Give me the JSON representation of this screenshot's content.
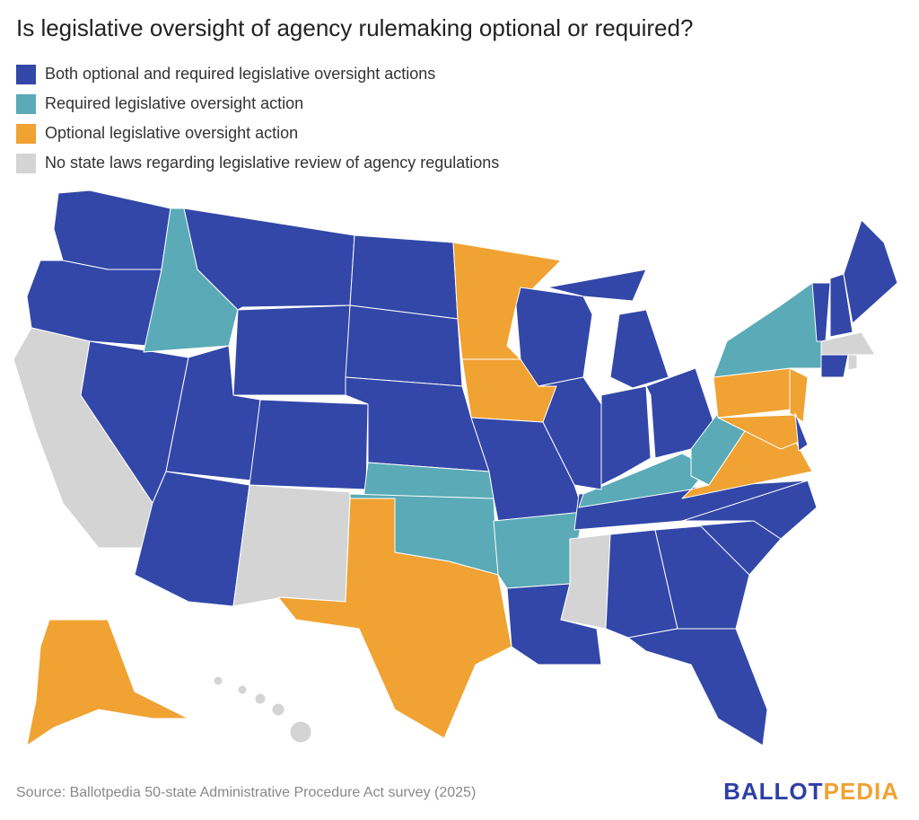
{
  "title": "Is legislative oversight of agency rulemaking optional or required?",
  "colors": {
    "both": "#3247a8",
    "required": "#5aaab7",
    "optional": "#f0a233",
    "none": "#d4d4d4"
  },
  "legend": [
    {
      "key": "both",
      "label": "Both optional and required legislative oversight actions"
    },
    {
      "key": "required",
      "label": "Required legislative oversight action"
    },
    {
      "key": "optional",
      "label": "Optional legislative oversight action"
    },
    {
      "key": "none",
      "label": "No state laws regarding legislative review of agency regulations"
    }
  ],
  "states": {
    "WA": "both",
    "OR": "both",
    "NV": "both",
    "AZ": "both",
    "UT": "both",
    "MT": "both",
    "WY": "both",
    "CO": "both",
    "ND": "both",
    "SD": "both",
    "NE": "both",
    "MO": "both",
    "LA": "both",
    "WI": "both",
    "IL": "both",
    "MI": "both",
    "IN": "both",
    "OH": "both",
    "TN": "both",
    "AL": "both",
    "GA": "both",
    "SC": "both",
    "NC": "both",
    "FL": "both",
    "VT": "both",
    "NH": "both",
    "ME": "both",
    "CT": "both",
    "DE": "both",
    "ID": "required",
    "KS": "required",
    "OK": "required",
    "AR": "required",
    "KY": "required",
    "WV": "required",
    "NY": "required",
    "MN": "optional",
    "IA": "optional",
    "TX": "optional",
    "PA": "optional",
    "NJ": "optional",
    "VA": "optional",
    "MD": "optional",
    "AK": "optional",
    "CA": "none",
    "NM": "none",
    "MS": "none",
    "HI": "none",
    "MA": "none",
    "RI": "none"
  },
  "footer": {
    "source": "Source: Ballotpedia 50-state Administrative Procedure Act survey (2025)",
    "logo_part1": "BALLOT",
    "logo_part2": "PEDIA"
  }
}
